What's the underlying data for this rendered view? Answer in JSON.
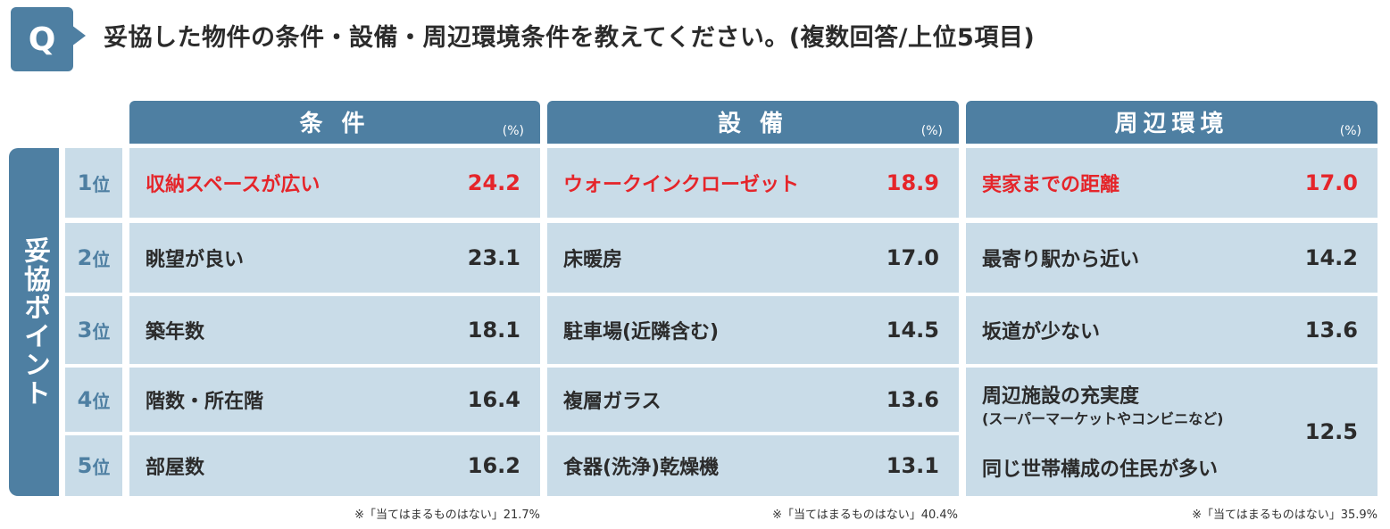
{
  "question": {
    "badge": "Q",
    "text": "妥協した物件の条件・設備・周辺環境条件を教えてください。(複数回答/上位5項目)"
  },
  "side_label": "妥協ポイント",
  "ranks": [
    {
      "num": "1",
      "suffix": "位"
    },
    {
      "num": "2",
      "suffix": "位"
    },
    {
      "num": "3",
      "suffix": "位"
    },
    {
      "num": "4",
      "suffix": "位"
    },
    {
      "num": "5",
      "suffix": "位"
    }
  ],
  "unit": "(%)",
  "colors": {
    "header": "#4e7fa2",
    "cell": "#c9dce8",
    "highlight": "#e5252a"
  },
  "chart_data": {
    "type": "table",
    "columns": [
      {
        "title": "条 件",
        "rows": [
          {
            "label": "収納スペースが広い",
            "value": "24.2"
          },
          {
            "label": "眺望が良い",
            "value": "23.1"
          },
          {
            "label": "築年数",
            "value": "18.1"
          },
          {
            "label": "階数・所在階",
            "value": "16.4"
          },
          {
            "label": "部屋数",
            "value": "16.2"
          }
        ],
        "note": "※「当てはまるものはない」21.7%"
      },
      {
        "title": "設 備",
        "rows": [
          {
            "label": "ウォークインクローゼット",
            "value": "18.9"
          },
          {
            "label": "床暖房",
            "value": "17.0"
          },
          {
            "label": "駐車場(近隣含む)",
            "value": "14.5"
          },
          {
            "label": "複層ガラス",
            "value": "13.6"
          },
          {
            "label": "食器(洗浄)乾燥機",
            "value": "13.1"
          }
        ],
        "note": "※「当てはまるものはない」40.4%"
      },
      {
        "title": "周辺環境",
        "rows": [
          {
            "label": "実家までの距離",
            "value": "17.0"
          },
          {
            "label": "最寄り駅から近い",
            "value": "14.2"
          },
          {
            "label": "坂道が少ない",
            "value": "13.6"
          }
        ],
        "merged_row": {
          "label1": "周辺施設の充実度",
          "sublabel1": "(スーパーマーケットやコンビニなど)",
          "label2": "同じ世帯構成の住民が多い",
          "value": "12.5"
        },
        "note": "※「当てはまるものはない」35.9%"
      }
    ]
  }
}
